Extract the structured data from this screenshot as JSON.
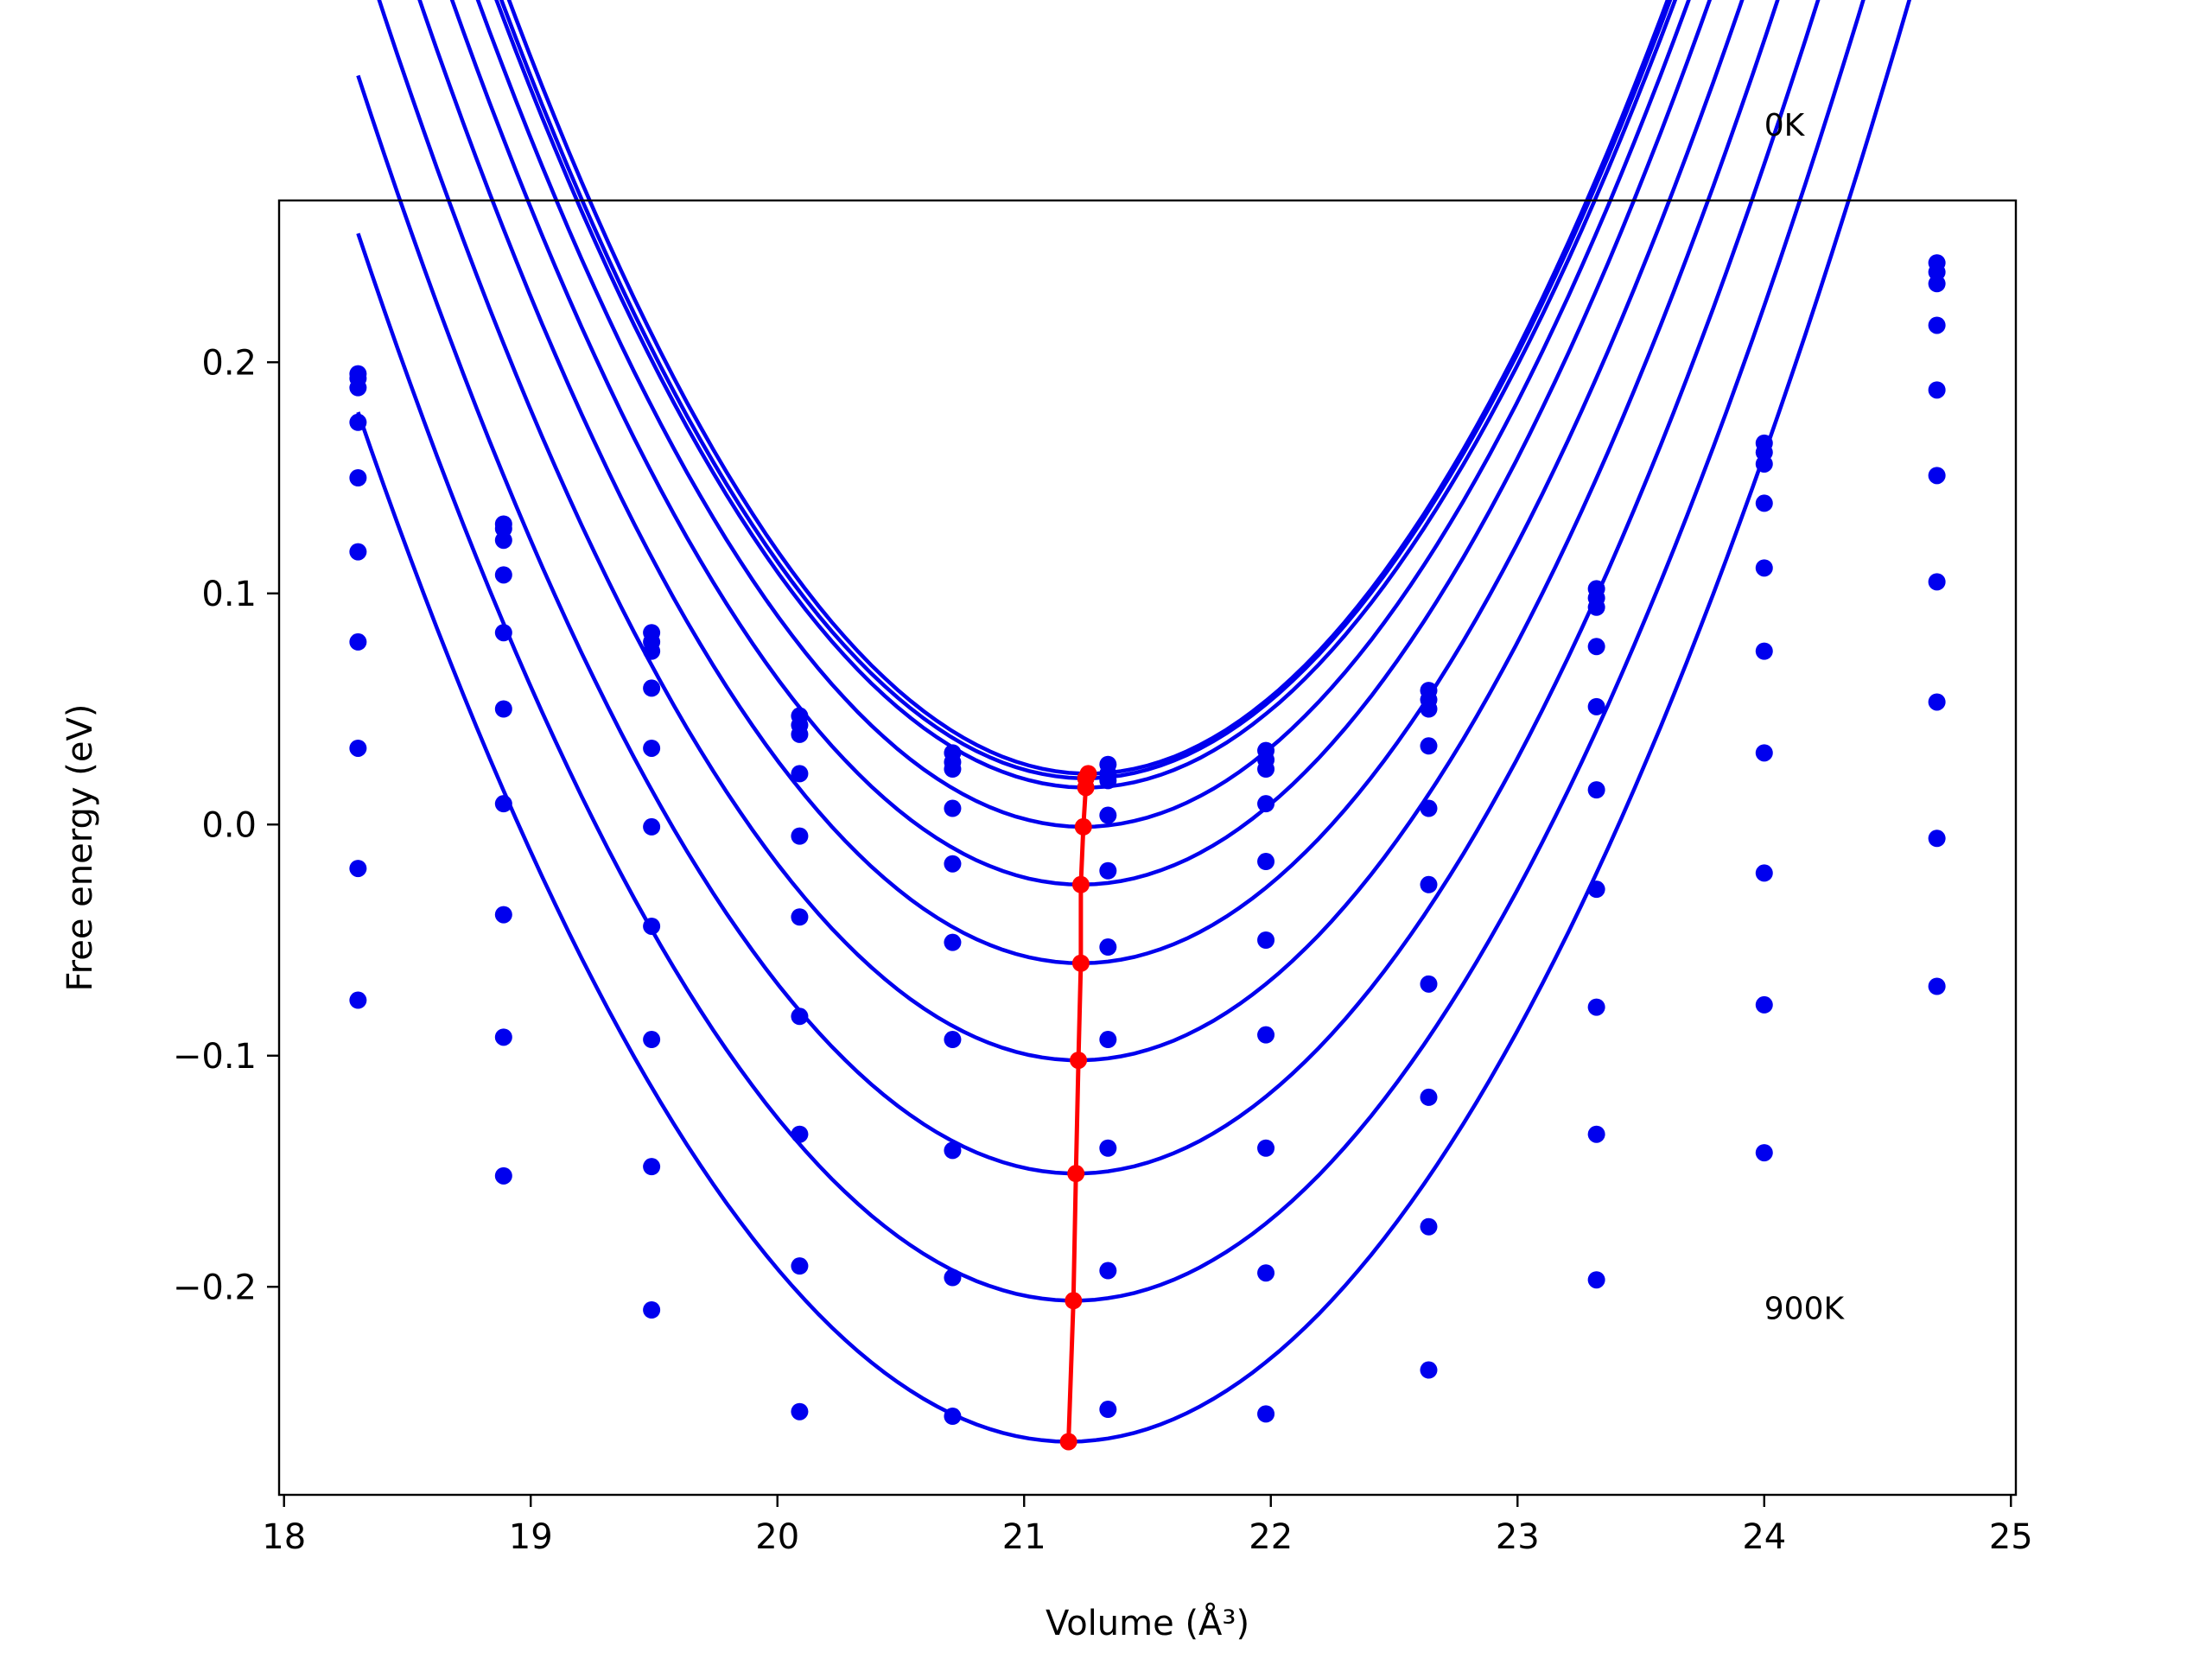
{
  "chart_data": {
    "type": "scatter",
    "xlabel": "Volume (Å³)",
    "ylabel": "Free energy (eV)",
    "xlim": [
      17.98,
      25.02
    ],
    "ylim": [
      -0.29,
      0.27
    ],
    "xticks": [
      18,
      19,
      20,
      21,
      22,
      23,
      24,
      25
    ],
    "yticks": [
      -0.2,
      -0.1,
      0.0,
      0.1,
      0.2
    ],
    "ytick_labels": [
      "−0.2",
      "−0.1",
      "0.0",
      "0.1",
      "0.2"
    ],
    "grid": false,
    "annotations": [
      {
        "text": "0K",
        "x": 24.0,
        "y": 0.298
      },
      {
        "text": "900K",
        "x": 24.0,
        "y": -0.214
      }
    ],
    "x": [
      18.3,
      18.89,
      19.49,
      20.09,
      20.71,
      21.34,
      21.98,
      22.64,
      23.32,
      24.0,
      24.7
    ],
    "series": [
      {
        "points": [
          0.195,
          0.13,
          0.083,
          0.047,
          0.031,
          0.026,
          0.032,
          0.058,
          0.102,
          0.165,
          0.243
        ],
        "fit": {
          "a": 0.0607,
          "b": 21.26,
          "c": 0.022
        }
      },
      {
        "points": [
          0.193,
          0.128,
          0.079,
          0.043,
          0.027,
          0.022,
          0.028,
          0.054,
          0.098,
          0.161,
          0.239
        ],
        "fit": {
          "a": 0.06,
          "b": 21.25,
          "c": 0.02
        }
      },
      {
        "points": [
          0.189,
          0.123,
          0.075,
          0.039,
          0.024,
          0.019,
          0.024,
          0.05,
          0.094,
          0.156,
          0.234
        ],
        "fit": {
          "a": 0.0597,
          "b": 21.25,
          "c": 0.016
        }
      },
      {
        "points": [
          0.174,
          0.108,
          0.059,
          0.022,
          0.007,
          0.004,
          0.009,
          0.034,
          0.077,
          0.139,
          0.216
        ],
        "fit": {
          "a": 0.0594,
          "b": 21.24,
          "c": -0.001
        }
      },
      {
        "points": [
          0.15,
          0.083,
          0.033,
          -0.005,
          -0.017,
          -0.02,
          -0.016,
          0.007,
          0.051,
          0.111,
          0.188
        ],
        "fit": {
          "a": 0.0589,
          "b": 21.23,
          "c": -0.026
        }
      },
      {
        "points": [
          0.118,
          0.05,
          -0.001,
          -0.04,
          -0.051,
          -0.053,
          -0.05,
          -0.026,
          0.015,
          0.075,
          0.151
        ],
        "fit": {
          "a": 0.058,
          "b": 21.23,
          "c": -0.06
        }
      },
      {
        "points": [
          0.079,
          0.009,
          -0.044,
          -0.083,
          -0.093,
          -0.093,
          -0.091,
          -0.069,
          -0.028,
          0.031,
          0.105
        ],
        "fit": {
          "a": 0.0571,
          "b": 21.22,
          "c": -0.102
        }
      },
      {
        "points": [
          0.033,
          -0.039,
          -0.093,
          -0.134,
          -0.141,
          -0.14,
          -0.14,
          -0.118,
          -0.079,
          -0.021,
          0.053
        ],
        "fit": {
          "a": 0.0561,
          "b": 21.21,
          "c": -0.151
        }
      },
      {
        "points": [
          -0.019,
          -0.092,
          -0.148,
          -0.191,
          -0.196,
          -0.193,
          -0.194,
          -0.174,
          -0.134,
          -0.078,
          -0.006
        ],
        "fit": {
          "a": 0.0549,
          "b": 21.2,
          "c": -0.206
        }
      },
      {
        "points": [
          -0.076,
          -0.152,
          -0.21,
          -0.254,
          -0.256,
          -0.253,
          -0.255,
          -0.236,
          -0.197,
          -0.142,
          -0.07
        ],
        "fit": {
          "a": 0.0537,
          "b": 21.18,
          "c": -0.267
        }
      }
    ],
    "minima_line": {
      "x": [
        21.26,
        21.25,
        21.25,
        21.24,
        21.23,
        21.23,
        21.22,
        21.21,
        21.2,
        21.18
      ],
      "y": [
        0.022,
        0.02,
        0.016,
        -0.001,
        -0.026,
        -0.06,
        -0.102,
        -0.151,
        -0.206,
        -0.267
      ]
    },
    "colors": {
      "series": "#0000ee",
      "minima": "#ff0000",
      "axes": "#000000"
    }
  }
}
